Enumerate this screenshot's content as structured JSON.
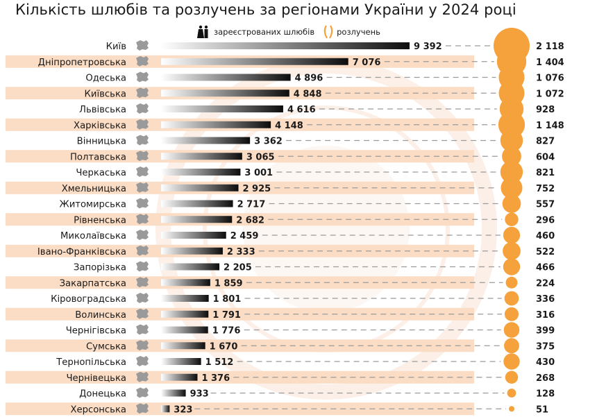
{
  "title": "Кількість шлюбів та розлучень за регіонами України у 2024 році",
  "legend": {
    "marriages_label": "зареєстрованих шлюбів",
    "divorces_label": "розлучень",
    "marriages_icon": "couple-icon",
    "divorces_icon": "split-rings-icon"
  },
  "colors": {
    "bar_end": "#0d0d0d",
    "bar_start": "#ffffff",
    "row_stripe": "#fbdcc4",
    "bubble": "#f6a23c",
    "dash": "#9a9a9a",
    "text": "#1a1a1a"
  },
  "chart_data": {
    "type": "bar",
    "orientation": "horizontal",
    "title": "Кількість шлюбів та розлучень за регіонами України у 2024 році",
    "categories": [
      "Київ",
      "Дніпропетровська",
      "Одеська",
      "Київська",
      "Львівська",
      "Харківська",
      "Вінницька",
      "Полтавська",
      "Черкаська",
      "Хмельницька",
      "Житомирська",
      "Рівненська",
      "Миколаївська",
      "Івано-Франківська",
      "Запорізька",
      "Закарпатська",
      "Кіровоградська",
      "Волинська",
      "Чернігівська",
      "Сумська",
      "Тернопільська",
      "Чернівецька",
      "Донецька",
      "Херсонська"
    ],
    "series": [
      {
        "name": "зареєстрованих шлюбів",
        "values": [
          9392,
          7076,
          4896,
          4848,
          4616,
          4148,
          3362,
          3065,
          3001,
          2925,
          2717,
          2682,
          2459,
          2333,
          2205,
          1859,
          1801,
          1791,
          1776,
          1670,
          1512,
          1376,
          933,
          323
        ],
        "labels": [
          "9 392",
          "7 076",
          "4 896",
          "4 848",
          "4 616",
          "4 148",
          "3 362",
          "3 065",
          "3 001",
          "2 925",
          "2 717",
          "2 682",
          "2 459",
          "2 333",
          "2 205",
          "1 859",
          "1 801",
          "1 791",
          "1 776",
          "1 670",
          "1 512",
          "1 376",
          "933",
          "323"
        ]
      },
      {
        "name": "розлучень",
        "values": [
          2118,
          1404,
          1076,
          1072,
          928,
          1148,
          827,
          604,
          821,
          752,
          557,
          296,
          460,
          522,
          466,
          224,
          336,
          316,
          399,
          375,
          430,
          268,
          128,
          51
        ],
        "labels": [
          "2 118",
          "1 404",
          "1 076",
          "1 072",
          "928",
          "1 148",
          "827",
          "604",
          "821",
          "752",
          "557",
          "296",
          "460",
          "522",
          "466",
          "224",
          "336",
          "316",
          "399",
          "375",
          "430",
          "268",
          "128",
          "51"
        ]
      }
    ],
    "xlim": [
      0,
      9392
    ],
    "grid": false,
    "legend_position": "top"
  }
}
